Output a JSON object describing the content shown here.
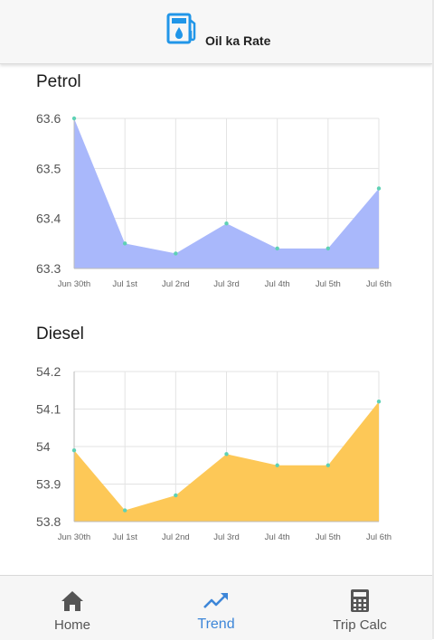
{
  "app": {
    "title": "Oil ka Rate"
  },
  "sections": {
    "petrol_title": "Petrol",
    "diesel_title": "Diesel"
  },
  "nav": {
    "items": [
      {
        "label": "Home",
        "icon": "home-icon"
      },
      {
        "label": "Trend",
        "icon": "trending-up-icon",
        "active": true
      },
      {
        "label": "Trip Calc",
        "icon": "calculator-icon"
      }
    ]
  },
  "colors": {
    "accent": "#3d86d8",
    "petrol_fill": "#a9b8fb",
    "diesel_fill": "#fdc857",
    "point": "#5fd1b5"
  },
  "chart_data": [
    {
      "type": "area",
      "title": "Petrol",
      "categories": [
        "Jun 30th",
        "Jul 1st",
        "Jul 2nd",
        "Jul 3rd",
        "Jul 4th",
        "Jul 5th",
        "Jul 6th"
      ],
      "values": [
        63.6,
        63.35,
        63.33,
        63.39,
        63.34,
        63.34,
        63.46
      ],
      "ylim": [
        63.3,
        63.6
      ],
      "yticks": [
        "63.6",
        "63.5",
        "63.4",
        "63.3"
      ],
      "ytick_values": [
        63.6,
        63.5,
        63.4,
        63.3
      ],
      "grid": true
    },
    {
      "type": "area",
      "title": "Diesel",
      "categories": [
        "Jun 30th",
        "Jul 1st",
        "Jul 2nd",
        "Jul 3rd",
        "Jul 4th",
        "Jul 5th",
        "Jul 6th"
      ],
      "values": [
        53.99,
        53.83,
        53.87,
        53.98,
        53.95,
        53.95,
        54.12
      ],
      "ylim": [
        53.8,
        54.2
      ],
      "yticks": [
        "54.2",
        "54.1",
        "54",
        "53.9",
        "53.8"
      ],
      "ytick_values": [
        54.2,
        54.1,
        54.0,
        53.9,
        53.8
      ],
      "grid": true
    }
  ]
}
